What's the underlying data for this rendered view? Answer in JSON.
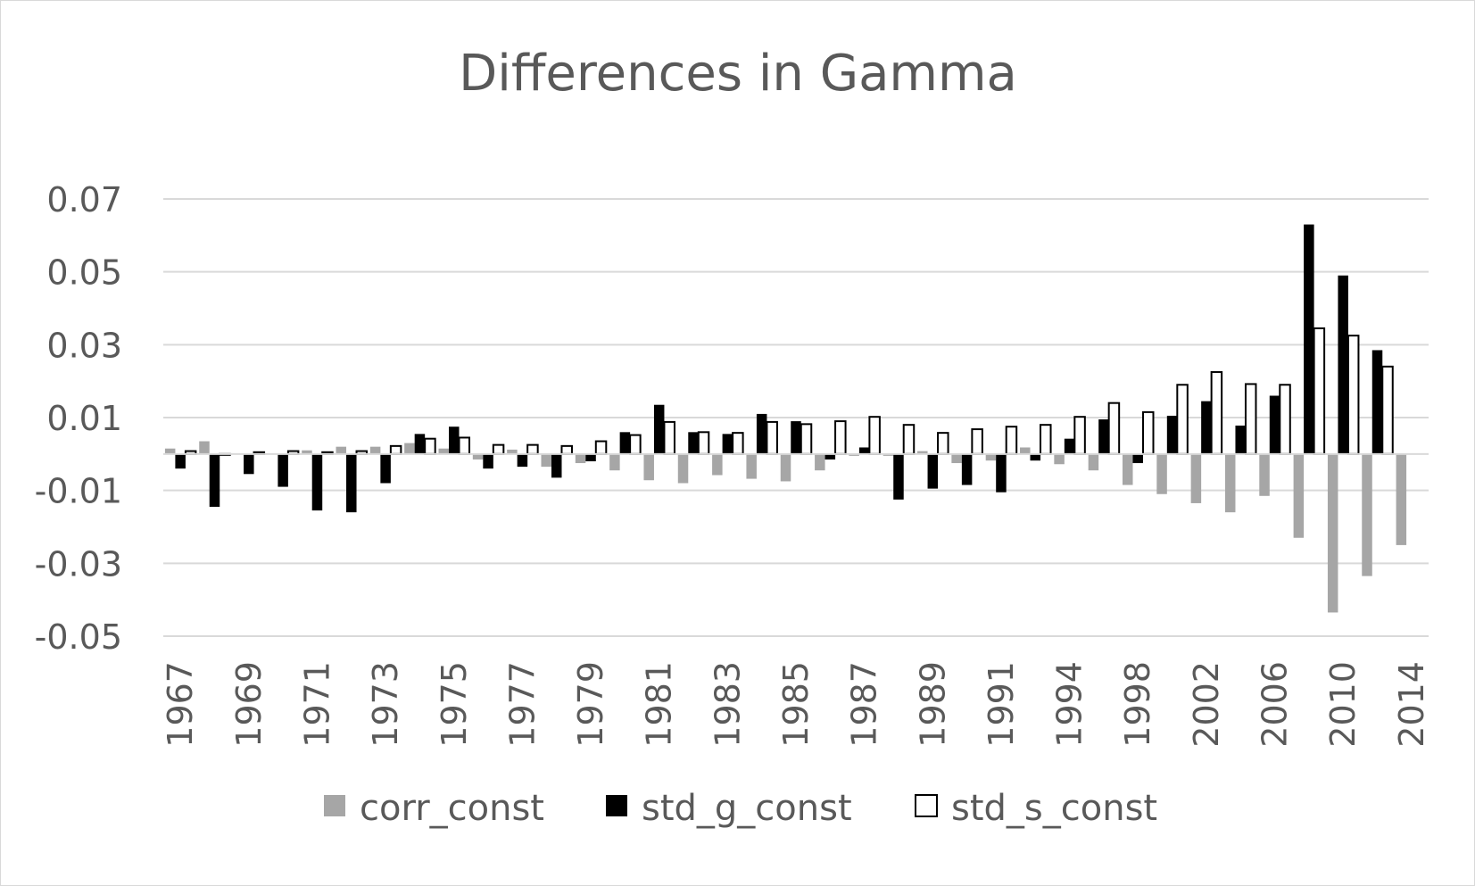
{
  "chart_data": {
    "type": "bar",
    "title": "Differences in Gamma",
    "xlabel": "",
    "ylabel": "",
    "ylim": [
      -0.05,
      0.07
    ],
    "yticks": [
      -0.05,
      -0.03,
      -0.01,
      0.01,
      0.03,
      0.05,
      0.07
    ],
    "ytick_labels": [
      "-0.05",
      "-0.03",
      "-0.01",
      "0.01",
      "0.03",
      "0.05",
      "0.07"
    ],
    "grid": true,
    "legend_position": "bottom",
    "categories": [
      "1967",
      "1968",
      "1969",
      "1970",
      "1971",
      "1972",
      "1973",
      "1974",
      "1975",
      "1976",
      "1977",
      "1978",
      "1979",
      "1980",
      "1981",
      "1982",
      "1983",
      "1984",
      "1985",
      "1986",
      "1987",
      "1988",
      "1989",
      "1990",
      "1991",
      "1992",
      "1994",
      "1996",
      "1998",
      "2000",
      "2002",
      "2004",
      "2006",
      "2008",
      "2010",
      "2012",
      "2014"
    ],
    "xtick_labels": [
      "1967",
      "1969",
      "1971",
      "1973",
      "1975",
      "1977",
      "1979",
      "1981",
      "1983",
      "1985",
      "1987",
      "1989",
      "1991",
      "1994",
      "1998",
      "2002",
      "2006",
      "2010",
      "2014"
    ],
    "series": [
      {
        "name": "corr_const",
        "color": "#a6a6a6",
        "values": [
          0.0015,
          0.0035,
          0.0,
          0.0,
          0.001,
          0.002,
          0.002,
          0.003,
          0.0015,
          -0.0015,
          0.0012,
          -0.0035,
          -0.0025,
          -0.0045,
          -0.0072,
          -0.008,
          -0.0058,
          -0.0068,
          -0.0075,
          -0.0045,
          -0.0005,
          -0.0005,
          0.0008,
          -0.0025,
          -0.0018,
          0.0018,
          -0.0028,
          -0.0045,
          -0.0085,
          -0.011,
          -0.0135,
          -0.016,
          -0.0115,
          -0.023,
          -0.0435,
          -0.0335,
          -0.025
        ]
      },
      {
        "name": "std_g_const",
        "color": "#000000",
        "values": [
          -0.004,
          -0.0145,
          -0.0055,
          -0.009,
          -0.0155,
          -0.016,
          -0.008,
          0.0055,
          0.0075,
          -0.004,
          -0.0035,
          -0.0065,
          -0.002,
          0.006,
          0.0135,
          0.006,
          0.0055,
          0.011,
          0.009,
          -0.0015,
          0.0018,
          -0.0125,
          -0.0095,
          -0.0085,
          -0.0105,
          -0.0018,
          0.0042,
          0.0095,
          -0.0025,
          0.0105,
          0.0145,
          0.0078,
          0.016,
          0.063,
          0.049,
          0.0285,
          0.0
        ]
      },
      {
        "name": "std_s_const",
        "color": "#ffffff",
        "values": [
          0.0008,
          -0.0002,
          0.0005,
          0.0008,
          0.0005,
          0.0008,
          0.0022,
          0.0042,
          0.0045,
          0.0025,
          0.0025,
          0.0022,
          0.0035,
          0.0052,
          0.0088,
          0.006,
          0.0058,
          0.0088,
          0.0082,
          0.009,
          0.0102,
          0.008,
          0.0058,
          0.0068,
          0.0075,
          0.008,
          0.0102,
          0.014,
          0.0115,
          0.019,
          0.0225,
          0.0192,
          0.019,
          0.0345,
          0.0325,
          0.024,
          0.0
        ]
      }
    ]
  }
}
